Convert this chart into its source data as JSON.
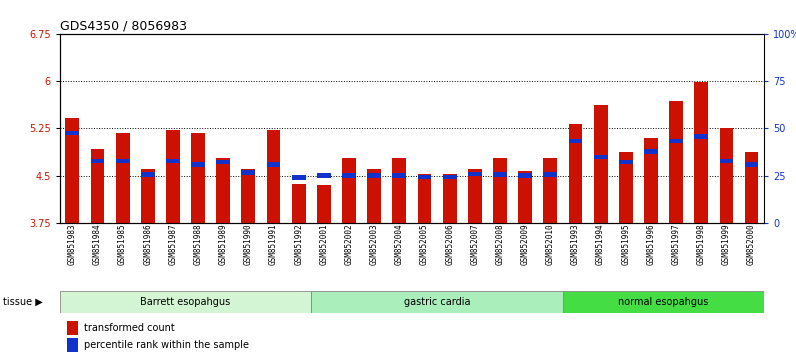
{
  "title": "GDS4350 / 8056983",
  "samples": [
    "GSM851983",
    "GSM851984",
    "GSM851985",
    "GSM851986",
    "GSM851987",
    "GSM851988",
    "GSM851989",
    "GSM851990",
    "GSM851991",
    "GSM851992",
    "GSM852001",
    "GSM852002",
    "GSM852003",
    "GSM852004",
    "GSM852005",
    "GSM852006",
    "GSM852007",
    "GSM852008",
    "GSM852009",
    "GSM852010",
    "GSM851993",
    "GSM851994",
    "GSM851995",
    "GSM851996",
    "GSM851997",
    "GSM851998",
    "GSM851999",
    "GSM852000"
  ],
  "red_values": [
    5.42,
    4.93,
    5.17,
    4.6,
    5.22,
    5.18,
    4.78,
    4.6,
    5.22,
    4.37,
    4.35,
    4.78,
    4.6,
    4.78,
    4.52,
    4.52,
    4.6,
    4.78,
    4.57,
    4.78,
    5.32,
    5.62,
    4.88,
    5.1,
    5.68,
    5.98,
    5.25,
    4.88
  ],
  "blue_values": [
    5.18,
    4.73,
    4.73,
    4.52,
    4.73,
    4.68,
    4.72,
    4.55,
    4.68,
    4.47,
    4.5,
    4.5,
    4.5,
    4.5,
    4.48,
    4.48,
    4.53,
    4.52,
    4.5,
    4.52,
    5.05,
    4.8,
    4.72,
    4.88,
    5.05,
    5.12,
    4.73,
    4.68
  ],
  "groups": [
    {
      "label": "Barrett esopahgus",
      "start": 0,
      "end": 10,
      "color": "#d4f5d4"
    },
    {
      "label": "gastric cardia",
      "start": 10,
      "end": 20,
      "color": "#aaeebb"
    },
    {
      "label": "normal esopahgus",
      "start": 20,
      "end": 28,
      "color": "#44dd44"
    }
  ],
  "ylim_left": [
    3.75,
    6.75
  ],
  "ylim_right": [
    0,
    100
  ],
  "yticks_left": [
    3.75,
    4.5,
    5.25,
    6.0,
    6.75
  ],
  "yticks_right": [
    0,
    25,
    50,
    75,
    100
  ],
  "ytick_labels_left": [
    "3.75",
    "4.5",
    "5.25",
    "6",
    "6.75"
  ],
  "ytick_labels_right": [
    "0",
    "25",
    "50",
    "75",
    "100%"
  ],
  "red_color": "#cc1100",
  "blue_color": "#1133cc",
  "bar_width": 0.55,
  "background_color": "#ffffff",
  "plot_bg_color": "#ffffff",
  "tick_label_color_left": "#cc1100",
  "tick_label_color_right": "#1133cc",
  "legend_red": "transformed count",
  "legend_blue": "percentile rank within the sample",
  "dotted_lines": [
    4.5,
    5.25,
    6.0
  ]
}
